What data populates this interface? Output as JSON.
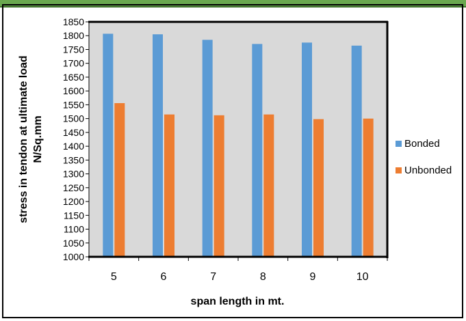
{
  "chart_data": {
    "type": "bar",
    "categories": [
      "5",
      "6",
      "7",
      "8",
      "9",
      "10"
    ],
    "series": [
      {
        "name": "Bonded",
        "values": [
          1807,
          1805,
          1785,
          1770,
          1775,
          1764
        ],
        "color": "#5b9bd5"
      },
      {
        "name": "Unbonded",
        "values": [
          1556,
          1515,
          1512,
          1515,
          1498,
          1500
        ],
        "color": "#ed7d31"
      }
    ],
    "title": "",
    "xlabel": "span length in mt.",
    "ylabel_line1": "stress in tendon at ultimate load",
    "ylabel_line2": "N/Sq.mm",
    "ylim": [
      1000,
      1850
    ],
    "yticks": [
      1000,
      1050,
      1100,
      1150,
      1200,
      1250,
      1300,
      1350,
      1400,
      1450,
      1500,
      1550,
      1600,
      1650,
      1700,
      1750,
      1800,
      1850
    ],
    "grid": false,
    "plot_background": "#d9d9d9",
    "legend": "right"
  }
}
